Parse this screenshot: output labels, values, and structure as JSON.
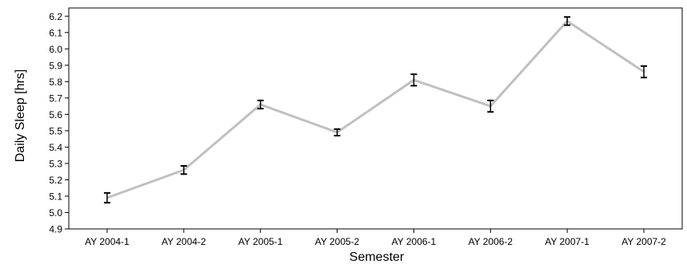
{
  "chart_data": {
    "type": "line",
    "title": "",
    "xlabel": "Semester",
    "ylabel": "Daily Sleep [hrs]",
    "categories": [
      "AY 2004-1",
      "AY 2004-2",
      "AY 2005-1",
      "AY 2005-2",
      "AY 2006-1",
      "AY 2006-2",
      "AY 2007-1",
      "AY 2007-2"
    ],
    "series": [
      {
        "values": [
          5.09,
          5.26,
          5.66,
          5.49,
          5.81,
          5.65,
          6.17,
          5.86
        ],
        "error": [
          0.03,
          0.025,
          0.025,
          0.02,
          0.035,
          0.035,
          0.025,
          0.035
        ],
        "color": "#c0c0c0"
      }
    ],
    "ylim": [
      4.9,
      6.25
    ],
    "yticks": [
      "4.9",
      "5.0",
      "5.1",
      "5.2",
      "5.3",
      "5.4",
      "5.5",
      "5.6",
      "5.7",
      "5.8",
      "5.9",
      "6.0",
      "6.1",
      "6.2"
    ],
    "grid": false,
    "errorbar_color": "#000000"
  }
}
